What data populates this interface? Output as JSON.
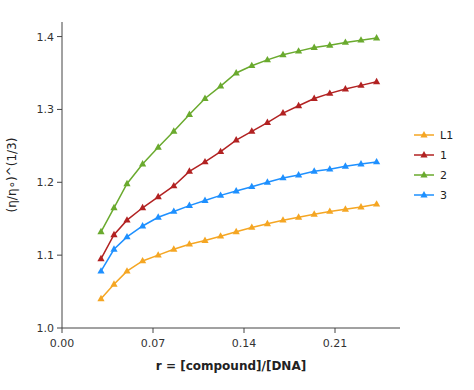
{
  "chart_data": {
    "type": "line",
    "xlabel": "r = [compound]/[DNA]",
    "ylabel": "(η/η∘)^(1/3)",
    "x": [
      0.03,
      0.04,
      0.05,
      0.062,
      0.074,
      0.086,
      0.098,
      0.11,
      0.122,
      0.134,
      0.146,
      0.158,
      0.17,
      0.182,
      0.194,
      0.206,
      0.218,
      0.23,
      0.242
    ],
    "series": [
      {
        "name": "L1",
        "color": "#F5A623",
        "marker": "triangle",
        "values": [
          1.04,
          1.06,
          1.078,
          1.092,
          1.1,
          1.108,
          1.115,
          1.12,
          1.126,
          1.132,
          1.138,
          1.143,
          1.148,
          1.152,
          1.156,
          1.16,
          1.163,
          1.166,
          1.17
        ]
      },
      {
        "name": "1",
        "color": "#B22222",
        "marker": "triangle",
        "values": [
          1.095,
          1.128,
          1.148,
          1.165,
          1.18,
          1.195,
          1.215,
          1.228,
          1.242,
          1.258,
          1.27,
          1.282,
          1.295,
          1.305,
          1.315,
          1.322,
          1.328,
          1.333,
          1.338
        ]
      },
      {
        "name": "2",
        "color": "#6AAA2E",
        "marker": "triangle",
        "values": [
          1.132,
          1.165,
          1.198,
          1.225,
          1.248,
          1.27,
          1.293,
          1.315,
          1.332,
          1.35,
          1.36,
          1.368,
          1.375,
          1.38,
          1.385,
          1.388,
          1.392,
          1.395,
          1.398
        ]
      },
      {
        "name": "3",
        "color": "#1E90FF",
        "marker": "triangle",
        "values": [
          1.078,
          1.108,
          1.125,
          1.14,
          1.152,
          1.16,
          1.168,
          1.175,
          1.182,
          1.188,
          1.194,
          1.2,
          1.206,
          1.21,
          1.215,
          1.218,
          1.222,
          1.225,
          1.228
        ]
      }
    ],
    "xlim": [
      0,
      0.26
    ],
    "ylim": [
      1.0,
      1.42
    ],
    "xticks": [
      {
        "value": 0,
        "label": "0.00"
      },
      0.07,
      0.14,
      0.21
    ],
    "yticks": [
      {
        "value": 1.0,
        "label": "1.0"
      },
      1.1,
      1.2,
      1.3,
      1.4
    ],
    "grid": false,
    "legend": "right"
  }
}
